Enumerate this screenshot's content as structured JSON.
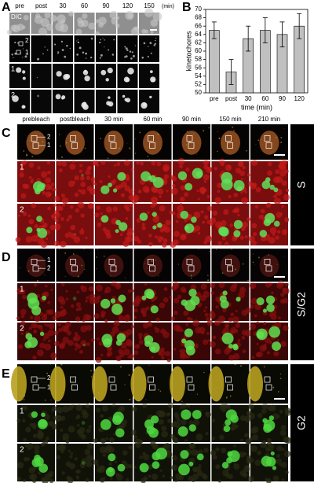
{
  "panel_a": {
    "label": "A",
    "columns": [
      "pre",
      "post",
      "30",
      "60",
      "90",
      "120",
      "150"
    ],
    "unit": "(min)",
    "channel": "DIC",
    "inset_labels": [
      "2",
      "1"
    ],
    "rows": [
      "1",
      "2"
    ]
  },
  "chart_data": {
    "label": "B",
    "type": "bar",
    "ylabel": "kinetochores",
    "xlabel": "time (min)",
    "categories": [
      "pre",
      "post",
      "30",
      "60",
      "90",
      "120"
    ],
    "values": [
      65,
      55,
      63,
      65,
      64,
      66
    ],
    "errors": [
      2,
      3,
      3,
      3,
      3,
      3
    ],
    "color": "#c0c0c0",
    "ylim": [
      50,
      70
    ],
    "yticks": [
      50,
      52,
      54,
      56,
      58,
      60,
      62,
      64,
      66,
      68,
      70
    ]
  },
  "panel_c": {
    "label": "C",
    "columns": [
      "prebleach",
      "postbleach",
      "30 min",
      "60 min",
      "90 min",
      "150 min",
      "210 min"
    ],
    "phase": "S",
    "inset_labels": [
      "2",
      "1"
    ],
    "rows": [
      "1",
      "2"
    ]
  },
  "panel_d": {
    "label": "D",
    "phase": "S/G2",
    "inset_labels": [
      "1",
      "2"
    ],
    "rows": [
      "1",
      "2"
    ]
  },
  "panel_e": {
    "label": "E",
    "phase": "G2",
    "inset_labels": [
      "2",
      "1"
    ],
    "rows": [
      "1",
      "2"
    ]
  }
}
